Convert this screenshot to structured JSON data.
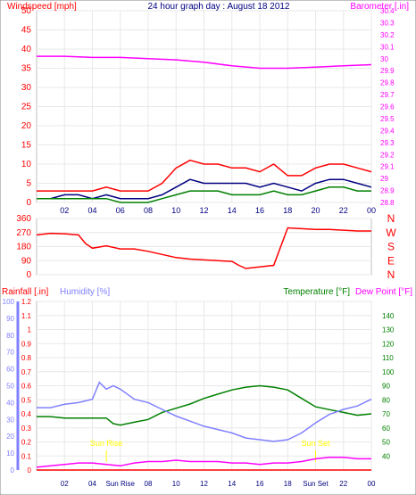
{
  "chart_data": [
    {
      "id": "wind",
      "type": "line",
      "title": "24 hour graph day : August 18 2012",
      "left_label": "Windspeed [mph]",
      "right_label": "Barometer [.in]",
      "x_ticks": [
        "02",
        "04",
        "06",
        "08",
        "10",
        "12",
        "14",
        "16",
        "18",
        "20",
        "22",
        "00"
      ],
      "y_left_ticks": [
        "0",
        "5",
        "10",
        "15",
        "20",
        "25",
        "30",
        "35",
        "40",
        "45",
        "50"
      ],
      "y_left_range": [
        0,
        50
      ],
      "y_right_ticks": [
        "28.8",
        "28.9",
        "29",
        "29.1",
        "29.2",
        "29.3",
        "29.4",
        "29.5",
        "29.6",
        "29.7",
        "29.8",
        "29.9",
        "30",
        "30.1",
        "30.2",
        "30.3",
        "30.4"
      ],
      "y_right_range": [
        28.8,
        30.4
      ],
      "x_range": [
        0,
        24
      ],
      "series": [
        {
          "color": "#ff00ff",
          "axis": "right",
          "x": [
            0,
            2,
            4,
            6,
            8,
            10,
            12,
            14,
            16,
            18,
            20,
            22,
            24
          ],
          "values": [
            30.02,
            30.02,
            30.01,
            30.01,
            30.0,
            29.99,
            29.97,
            29.94,
            29.92,
            29.92,
            29.93,
            29.94,
            29.95
          ]
        },
        {
          "color": "#ff0000",
          "axis": "left",
          "x": [
            0,
            1,
            2,
            3,
            4,
            5,
            6,
            7,
            8,
            9,
            10,
            11,
            12,
            13,
            14,
            15,
            16,
            17,
            18,
            19,
            20,
            21,
            22,
            23,
            24
          ],
          "values": [
            3,
            3,
            3,
            3,
            3,
            4,
            3,
            3,
            3,
            5,
            9,
            11,
            10,
            10,
            9,
            9,
            8,
            10,
            7,
            7,
            9,
            10,
            10,
            9,
            8
          ]
        },
        {
          "color": "#000080",
          "axis": "left",
          "x": [
            0,
            1,
            2,
            3,
            4,
            5,
            6,
            7,
            8,
            9,
            10,
            11,
            12,
            13,
            14,
            15,
            16,
            17,
            18,
            19,
            20,
            21,
            22,
            23,
            24
          ],
          "values": [
            1,
            1,
            2,
            2,
            1,
            2,
            1,
            1,
            1,
            2,
            4,
            6,
            5,
            5,
            5,
            5,
            4,
            5,
            4,
            3,
            5,
            6,
            6,
            5,
            4
          ]
        },
        {
          "color": "#008000",
          "axis": "left",
          "x": [
            0,
            1,
            2,
            3,
            4,
            5,
            6,
            7,
            8,
            9,
            10,
            11,
            12,
            13,
            14,
            15,
            16,
            17,
            18,
            19,
            20,
            21,
            22,
            23,
            24
          ],
          "values": [
            1,
            1,
            1,
            1,
            1,
            1,
            0,
            0,
            0,
            1,
            2,
            3,
            3,
            3,
            2,
            2,
            2,
            3,
            2,
            2,
            3,
            4,
            4,
            3,
            3
          ]
        }
      ]
    },
    {
      "id": "direction",
      "type": "line",
      "y_left_ticks": [
        "0",
        "90",
        "180",
        "270",
        "360"
      ],
      "y_left_range": [
        0,
        360
      ],
      "y_right_ticks": [
        "N",
        "W",
        "S",
        "E",
        "N"
      ],
      "x_range": [
        0,
        24
      ],
      "series": [
        {
          "color": "#ff0000",
          "x": [
            0,
            1,
            2,
            3,
            3.5,
            4,
            5,
            6,
            7,
            8,
            9,
            10,
            11,
            12,
            13,
            14,
            14.5,
            15,
            16,
            17,
            18,
            19,
            20,
            21,
            22,
            23,
            24
          ],
          "values": [
            255,
            265,
            262,
            255,
            200,
            170,
            185,
            165,
            165,
            150,
            130,
            110,
            100,
            95,
            90,
            85,
            60,
            40,
            50,
            60,
            300,
            295,
            290,
            290,
            285,
            280,
            280
          ]
        }
      ]
    },
    {
      "id": "rain",
      "type": "line",
      "left_label": "Rainfall [.in]",
      "mid_label": "Humidity [%]",
      "right_label": "Temperature [°F]",
      "right_label2": "Dew Point [°F]",
      "y_rain_ticks": [
        "0",
        "0.1",
        "0.2",
        "0.3",
        "0.4",
        "0.5",
        "0.6",
        "0.7",
        "0.8",
        "0.9",
        "1",
        "1.1",
        "1.2"
      ],
      "y_rain_range": [
        0,
        1.2
      ],
      "y_hum_ticks": [
        "0",
        "10",
        "20",
        "30",
        "40",
        "50",
        "60",
        "70",
        "80",
        "90",
        "100"
      ],
      "y_hum_range": [
        0,
        100
      ],
      "y_temp_ticks": [
        "40",
        "50",
        "60",
        "70",
        "80",
        "90",
        "100",
        "110",
        "120",
        "130",
        "140"
      ],
      "y_temp_range": [
        30,
        150
      ],
      "x_ticks": [
        "02",
        "04",
        "Sun Rise",
        "08",
        "10",
        "12",
        "14",
        "16",
        "18",
        "Sun Set",
        "22",
        "00"
      ],
      "annotations": [
        "Sun Rise",
        "Sun Set"
      ],
      "x_range": [
        0,
        24
      ],
      "series": [
        {
          "color": "#008000",
          "x": [
            0,
            1,
            2,
            3,
            4,
            5,
            5.5,
            6,
            7,
            8,
            9,
            10,
            11,
            12,
            13,
            14,
            15,
            16,
            17,
            18,
            19,
            20,
            21,
            22,
            23,
            24
          ],
          "values": [
            68,
            68,
            67,
            67,
            67,
            67,
            63,
            62,
            64,
            66,
            71,
            74,
            77,
            81,
            84,
            87,
            89,
            90,
            89,
            87,
            81,
            75,
            73,
            71,
            69,
            70
          ],
          "axis": "temp"
        },
        {
          "color": "#8080ff",
          "x": [
            0,
            1,
            2,
            3,
            4,
            4.5,
            5,
            5.5,
            6,
            7,
            8,
            9,
            10,
            11,
            12,
            13,
            14,
            15,
            16,
            17,
            18,
            19,
            20,
            21,
            22,
            23,
            24
          ],
          "values": [
            37,
            37,
            39,
            40,
            42,
            52,
            48,
            50,
            48,
            42,
            40,
            36,
            32,
            29,
            26,
            24,
            22,
            19,
            18,
            17,
            18,
            22,
            28,
            33,
            36,
            38,
            42
          ],
          "axis": "hum"
        },
        {
          "color": "#ff00ff",
          "x": [
            0,
            1,
            2,
            3,
            4,
            5,
            6,
            7,
            8,
            9,
            10,
            11,
            12,
            13,
            14,
            15,
            16,
            17,
            18,
            19,
            20,
            21,
            22,
            23,
            24
          ],
          "values": [
            0.02,
            0.03,
            0.04,
            0.05,
            0.05,
            0.04,
            0.03,
            0.05,
            0.06,
            0.06,
            0.07,
            0.06,
            0.06,
            0.06,
            0.05,
            0.05,
            0.04,
            0.05,
            0.05,
            0.06,
            0.08,
            0.09,
            0.09,
            0.08,
            0.08
          ],
          "axis": "rain"
        },
        {
          "color": "#ff0000",
          "x": [
            0,
            24
          ],
          "values": [
            0,
            0
          ],
          "axis": "rain"
        }
      ]
    }
  ]
}
